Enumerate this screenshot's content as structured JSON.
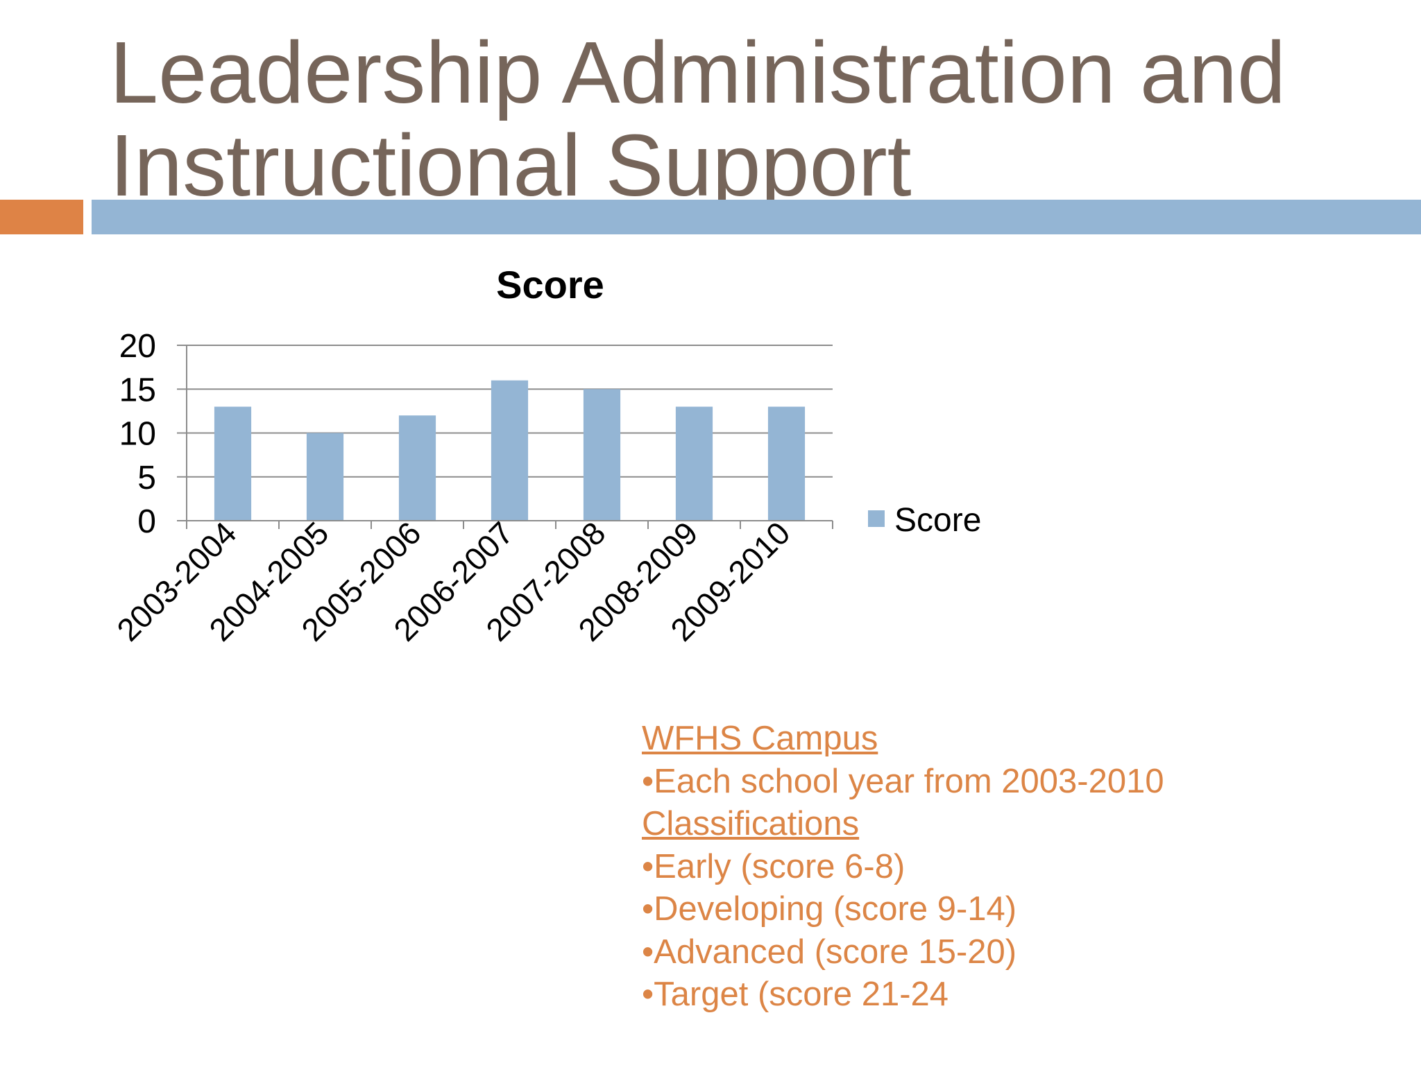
{
  "slide": {
    "title_line1": "Leadership Administration and",
    "title_line2": "Instructional Support"
  },
  "colors": {
    "title": "#76655a",
    "accent_orange": "#de8346",
    "accent_blue": "#94b5d4",
    "bar": "#94b5d4",
    "notes_text": "#dc8546",
    "gridline": "#8c8c8c"
  },
  "chart_data": {
    "type": "bar",
    "title": "Score",
    "categories": [
      "2003-2004",
      "2004-2005",
      "2005-2006",
      "2006-2007",
      "2007-2008",
      "2008-2009",
      "2009-2010"
    ],
    "series": [
      {
        "name": "Score",
        "values": [
          13,
          10,
          12,
          16,
          15,
          13,
          13
        ]
      }
    ],
    "ylim": [
      0,
      20
    ],
    "yticks": [
      0,
      5,
      10,
      15,
      20
    ],
    "grid": true,
    "legend": "right"
  },
  "notes": {
    "heading1": "WFHS Campus",
    "item1": "•Each school year from 2003-2010",
    "heading2": "Classifications",
    "items": [
      "•Early (score 6-8)",
      "•Developing (score 9-14)",
      "•Advanced (score 15-20)",
      "•Target (score 21-24"
    ]
  }
}
